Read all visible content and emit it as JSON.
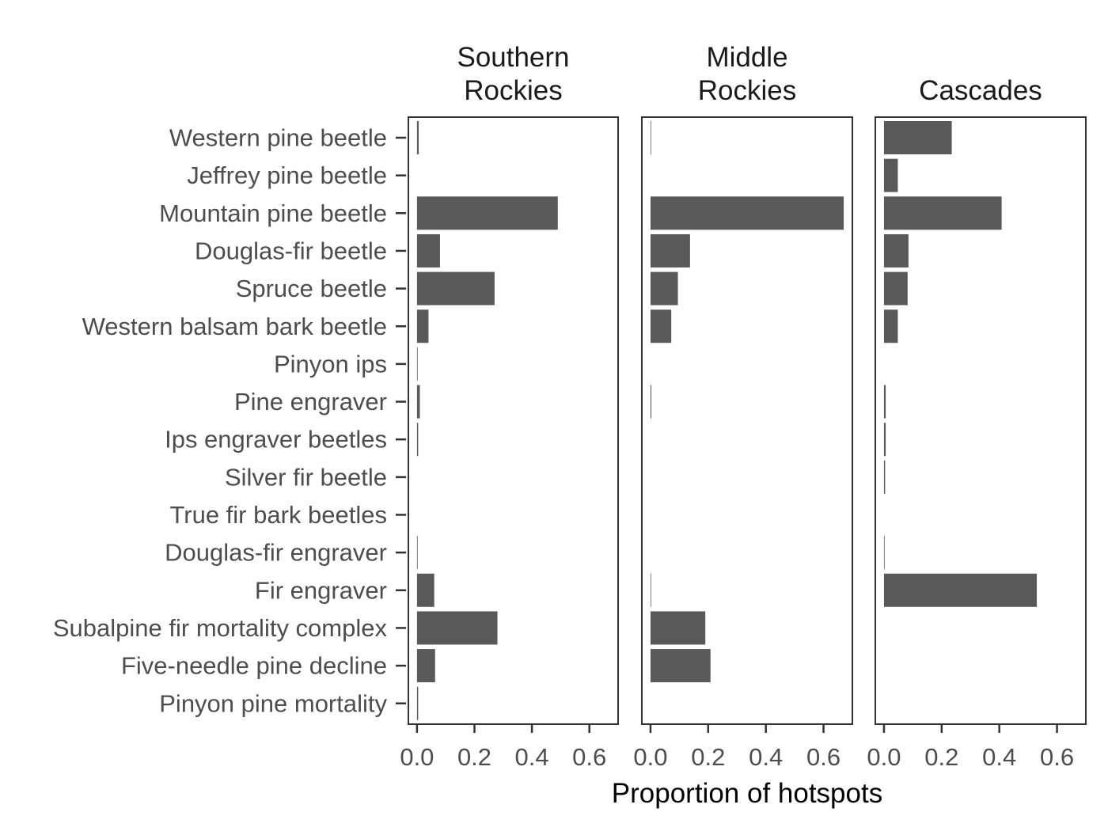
{
  "chart_data": {
    "type": "bar",
    "orientation": "horizontal",
    "xlabel": "Proportion of hotspots",
    "ylabel": "",
    "xlim": [
      -0.03,
      0.7
    ],
    "xticks": [
      0.0,
      0.2,
      0.4,
      0.6
    ],
    "xtick_labels": [
      "0.0",
      "0.2",
      "0.4",
      "0.6"
    ],
    "grid": false,
    "bar_color": "#595959",
    "categories": [
      "Western pine beetle",
      "Jeffrey pine beetle",
      "Mountain pine beetle",
      "Douglas-fir beetle",
      "Spruce beetle",
      "Western balsam bark beetle",
      "Pinyon ips",
      "Pine engraver",
      "Ips engraver beetles",
      "Silver fir beetle",
      "True fir bark beetles",
      "Douglas-fir engraver",
      "Fir engraver",
      "Subalpine fir mortality complex",
      "Five-needle pine decline",
      "Pinyon pine mortality"
    ],
    "facets": [
      {
        "title_lines": [
          "Southern",
          "Rockies"
        ],
        "values": [
          0.006,
          0,
          0.49,
          0.08,
          0.27,
          0.04,
          0.002,
          0.01,
          0.004,
          0,
          0,
          0.001,
          0.06,
          0.28,
          0.063,
          0.004
        ]
      },
      {
        "title_lines": [
          "Middle",
          "Rockies"
        ],
        "values": [
          0.002,
          0,
          0.67,
          0.137,
          0.095,
          0.072,
          0,
          0.003,
          0,
          0,
          0,
          0,
          0.001,
          0.19,
          0.208,
          0
        ]
      },
      {
        "title_lines": [
          "Cascades"
        ],
        "values": [
          0.235,
          0.048,
          0.408,
          0.085,
          0.082,
          0.048,
          0,
          0.006,
          0.006,
          0.004,
          0,
          0.002,
          0.53,
          0,
          0,
          0
        ]
      }
    ]
  }
}
